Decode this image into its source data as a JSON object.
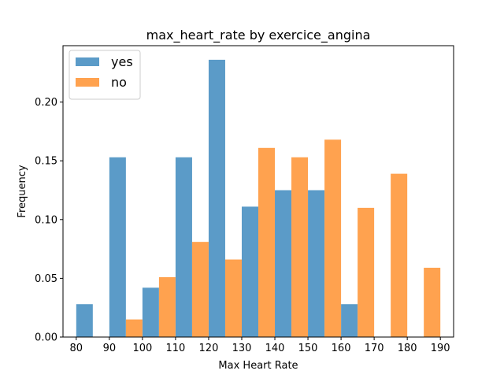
{
  "chart_data": {
    "type": "bar",
    "title": "max_heart_rate by exercice_angina",
    "xlabel": "Max Heart Rate",
    "ylabel": "Frequency",
    "xlim": [
      76,
      194
    ],
    "ylim": [
      0,
      0.248
    ],
    "xticks": [
      "80",
      "90",
      "100",
      "110",
      "120",
      "130",
      "140",
      "150",
      "160",
      "170",
      "180",
      "190"
    ],
    "yticks": [
      "0.00",
      "0.05",
      "0.10",
      "0.15",
      "0.20"
    ],
    "bin_starts": [
      80,
      90,
      100,
      110,
      120,
      130,
      140,
      150,
      160,
      170,
      180
    ],
    "bin_width": 10,
    "legend_position": "top-left",
    "series": [
      {
        "name": "yes",
        "color": "#5b9bc8",
        "values": [
          0.028,
          0.153,
          0.042,
          0.153,
          0.236,
          0.111,
          0.125,
          0.125,
          0.028,
          0.0,
          0.0
        ]
      },
      {
        "name": "no",
        "color": "#ffa24f",
        "values": [
          0.0,
          0.015,
          0.051,
          0.081,
          0.066,
          0.161,
          0.153,
          0.168,
          0.11,
          0.139,
          0.059
        ]
      }
    ]
  }
}
